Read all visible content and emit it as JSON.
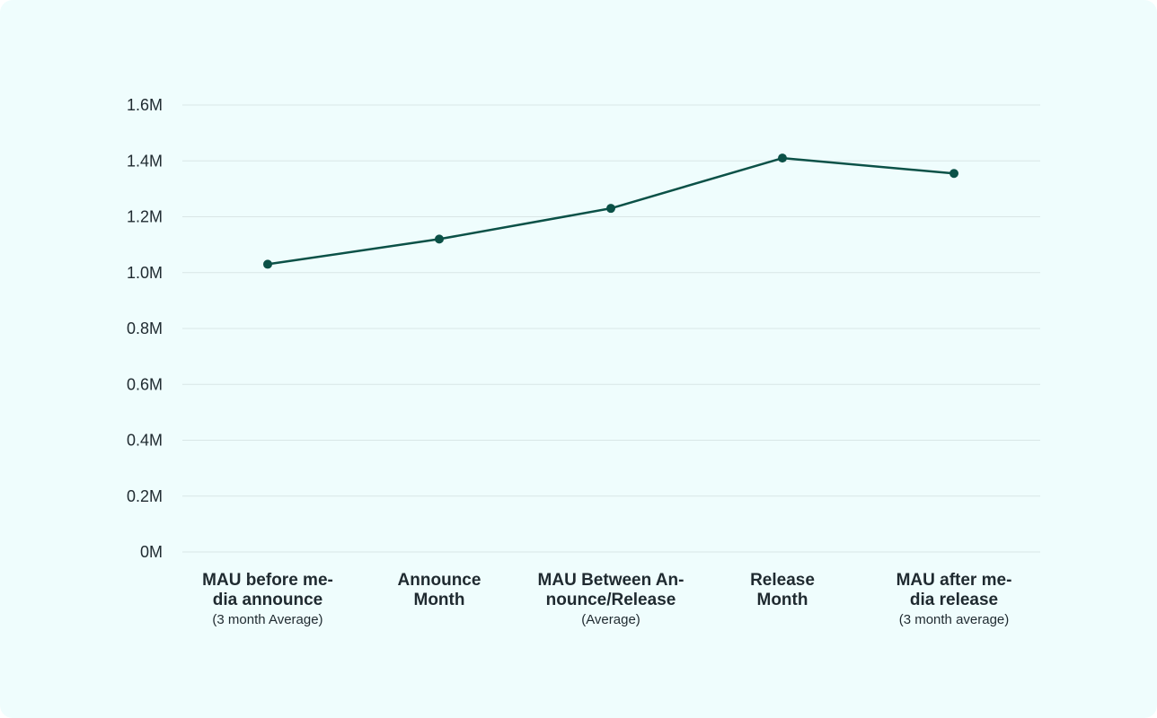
{
  "chart_data": {
    "type": "line",
    "categories": [
      {
        "lines": [
          "MAU before me-",
          "dia announce"
        ],
        "sub": "(3 month Average)"
      },
      {
        "lines": [
          "Announce",
          "Month"
        ],
        "sub": ""
      },
      {
        "lines": [
          "MAU Between An-",
          "nounce/Release"
        ],
        "sub": "(Average)"
      },
      {
        "lines": [
          "Release",
          "Month"
        ],
        "sub": ""
      },
      {
        "lines": [
          "MAU after me-",
          "dia release"
        ],
        "sub": "(3 month average)"
      }
    ],
    "values": [
      1.03,
      1.12,
      1.23,
      1.41,
      1.355
    ],
    "ylim": [
      0,
      1.6
    ],
    "yticks": [
      {
        "value": 0,
        "label": "0M"
      },
      {
        "value": 0.2,
        "label": "0.2M"
      },
      {
        "value": 0.4,
        "label": "0.4M"
      },
      {
        "value": 0.6,
        "label": "0.6M"
      },
      {
        "value": 0.8,
        "label": "0.8M"
      },
      {
        "value": 1.0,
        "label": "1.0M"
      },
      {
        "value": 1.2,
        "label": "1.2M"
      },
      {
        "value": 1.4,
        "label": "1.4M"
      },
      {
        "value": 1.6,
        "label": "1.6M"
      }
    ],
    "grid": true,
    "colors": {
      "background": "#effdfd",
      "line": "#0b5147",
      "grid": "#d9e6e6",
      "text": "#1f2a30"
    }
  }
}
